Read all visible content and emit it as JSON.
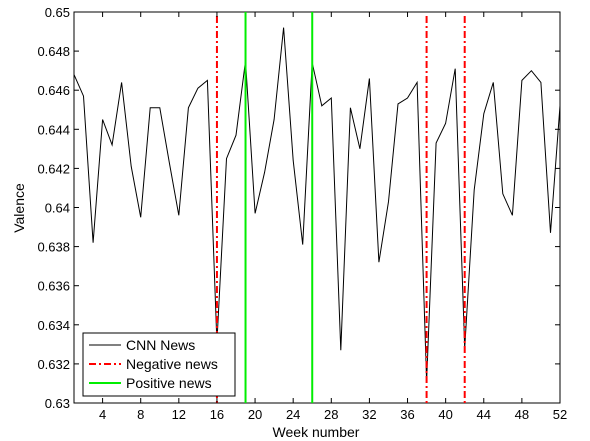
{
  "chart_data": {
    "type": "line",
    "xlabel": "Week number",
    "ylabel": "Valence",
    "xlim": [
      1,
      52
    ],
    "ylim": [
      0.63,
      0.65
    ],
    "x_ticks": [
      4,
      8,
      12,
      16,
      20,
      24,
      28,
      32,
      36,
      40,
      44,
      48,
      52
    ],
    "x_tick_labels": [
      "4",
      "8",
      "12",
      "16",
      "20",
      "24",
      "28",
      "32",
      "36",
      "40",
      "44",
      "48",
      "52"
    ],
    "y_ticks": [
      0.63,
      0.632,
      0.634,
      0.636,
      0.638,
      0.64,
      0.642,
      0.644,
      0.646,
      0.648,
      0.65
    ],
    "y_tick_labels": [
      "0.63",
      "0.632",
      "0.634",
      "0.636",
      "0.638",
      "0.64",
      "0.642",
      "0.644",
      "0.646",
      "0.648",
      "0.65"
    ],
    "grid": false,
    "legend_position": "bottom-left",
    "series": [
      {
        "name": "CNN News",
        "color": "#000000",
        "style": "solid",
        "x": [
          1,
          2,
          3,
          4,
          5,
          6,
          7,
          8,
          9,
          10,
          11,
          12,
          13,
          14,
          15,
          16,
          17,
          18,
          19,
          20,
          21,
          22,
          23,
          24,
          25,
          26,
          27,
          28,
          29,
          30,
          31,
          32,
          33,
          34,
          35,
          36,
          37,
          38,
          39,
          40,
          41,
          42,
          43,
          44,
          45,
          46,
          47,
          48,
          49,
          50,
          51,
          52
        ],
        "values": [
          0.6468,
          0.6457,
          0.6382,
          0.6445,
          0.6432,
          0.6464,
          0.6421,
          0.6395,
          0.6451,
          0.6451,
          0.6423,
          0.6396,
          0.6451,
          0.6461,
          0.6465,
          0.6331,
          0.6425,
          0.6437,
          0.6475,
          0.6397,
          0.6418,
          0.6445,
          0.6492,
          0.6424,
          0.6381,
          0.6474,
          0.6452,
          0.6456,
          0.6327,
          0.6451,
          0.643,
          0.6466,
          0.6372,
          0.6403,
          0.6453,
          0.6456,
          0.6464,
          0.6311,
          0.6433,
          0.6443,
          0.6471,
          0.6328,
          0.6409,
          0.6448,
          0.6464,
          0.6407,
          0.6396,
          0.6465,
          0.647,
          0.6464,
          0.6387,
          0.6452
        ]
      },
      {
        "name": "Negative news",
        "color": "#ff0000",
        "style": "dash-dot",
        "kind": "vertical-lines",
        "x": [
          16,
          38,
          42
        ]
      },
      {
        "name": "Positive news",
        "color": "#00ee00",
        "style": "solid",
        "kind": "vertical-lines",
        "x": [
          19,
          26
        ]
      }
    ]
  }
}
